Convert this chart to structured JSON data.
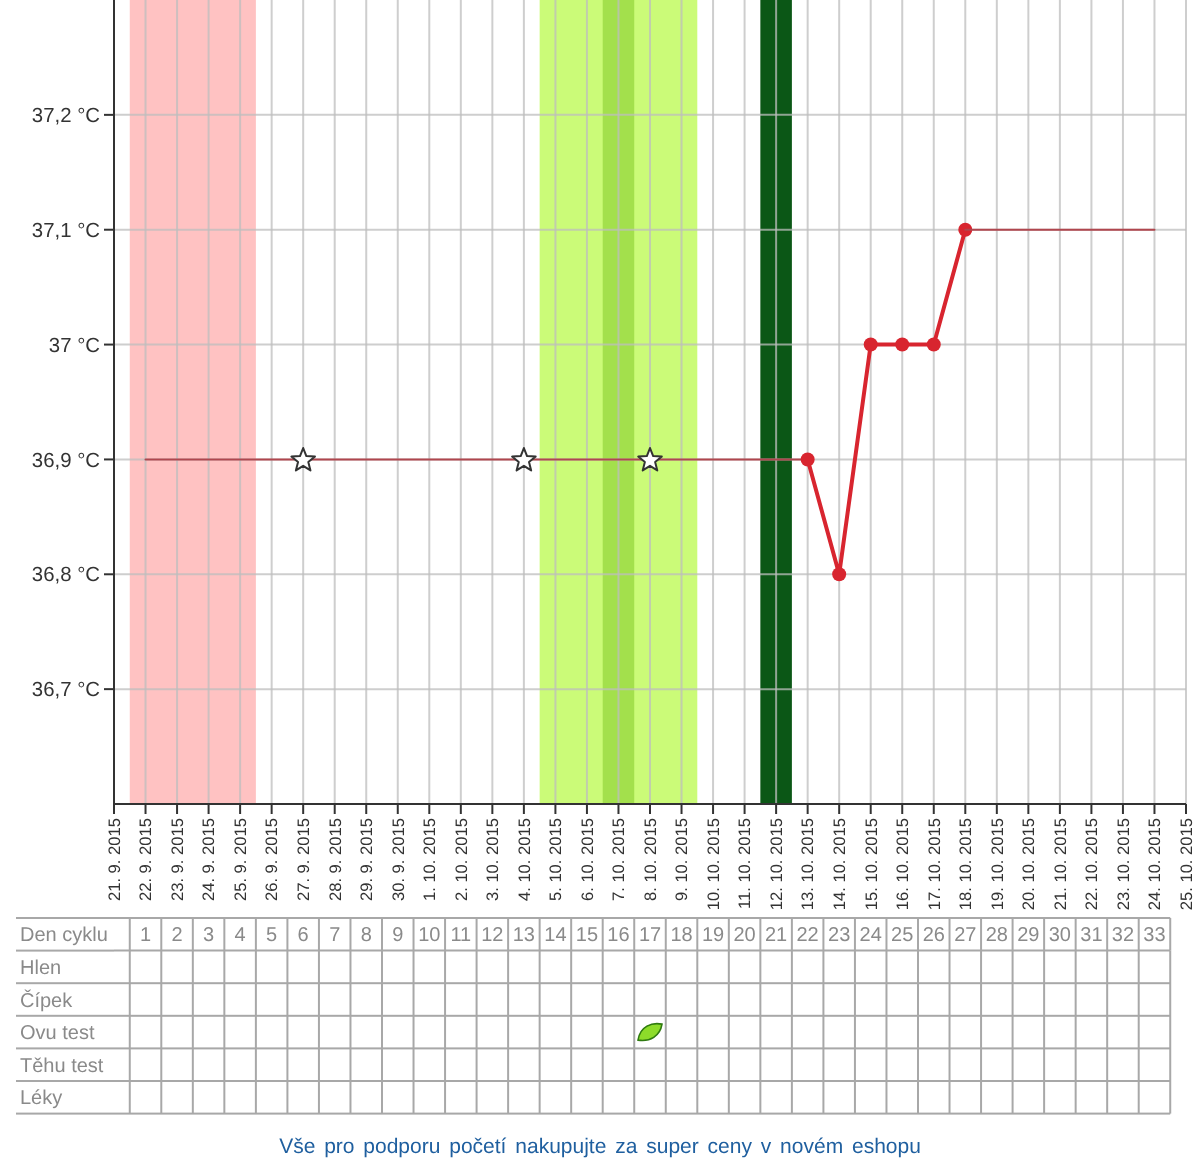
{
  "chart_data": [
    {
      "type": "line",
      "series": [
        {
          "x": [
            "2015-09-22",
            "2015-10-13"
          ],
          "values": [
            36.9,
            36.9
          ],
          "color": "#b0464e",
          "marker": "none"
        },
        {
          "x": [
            "2015-10-13",
            "2015-10-14",
            "2015-10-15",
            "2015-10-16",
            "2015-10-17",
            "2015-10-18"
          ],
          "values": [
            36.9,
            36.8,
            37.0,
            37.0,
            37.0,
            37.1
          ],
          "color": "#d8252f",
          "marker": "circle"
        },
        {
          "x": [
            "2015-10-18",
            "2015-10-24"
          ],
          "values": [
            37.1,
            37.1
          ],
          "color": "#b0464e",
          "marker": "none"
        },
        {
          "type": "scatter",
          "x": [
            "2015-09-27",
            "2015-10-04",
            "2015-10-08"
          ],
          "values": [
            36.9,
            36.9,
            36.9
          ],
          "color": "#ffffff",
          "marker": "star"
        }
      ],
      "xlim": [
        "2015-09-21",
        "2015-10-25"
      ],
      "xticks": [
        {
          "value": "2015-09-21",
          "label": "21. 9. 2015"
        },
        {
          "value": "2015-09-22",
          "label": "22. 9. 2015"
        },
        {
          "value": "2015-09-23",
          "label": "23. 9. 2015"
        },
        {
          "value": "2015-09-24",
          "label": "24. 9. 2015"
        },
        {
          "value": "2015-09-25",
          "label": "25. 9. 2015"
        },
        {
          "value": "2015-09-26",
          "label": "26. 9. 2015"
        },
        {
          "value": "2015-09-27",
          "label": "27. 9. 2015"
        },
        {
          "value": "2015-09-28",
          "label": "28. 9. 2015"
        },
        {
          "value": "2015-09-29",
          "label": "29. 9. 2015"
        },
        {
          "value": "2015-09-30",
          "label": "30. 9. 2015"
        },
        {
          "value": "2015-10-01",
          "label": "1. 10. 2015"
        },
        {
          "value": "2015-10-02",
          "label": "2. 10. 2015"
        },
        {
          "value": "2015-10-03",
          "label": "3. 10. 2015"
        },
        {
          "value": "2015-10-04",
          "label": "4. 10. 2015"
        },
        {
          "value": "2015-10-05",
          "label": "5. 10. 2015"
        },
        {
          "value": "2015-10-06",
          "label": "6. 10. 2015"
        },
        {
          "value": "2015-10-07",
          "label": "7. 10. 2015"
        },
        {
          "value": "2015-10-08",
          "label": "8. 10. 2015"
        },
        {
          "value": "2015-10-09",
          "label": "9. 10. 2015"
        },
        {
          "value": "2015-10-10",
          "label": "10. 10. 2015"
        },
        {
          "value": "2015-10-11",
          "label": "11. 10. 2015"
        },
        {
          "value": "2015-10-12",
          "label": "12. 10. 2015"
        },
        {
          "value": "2015-10-13",
          "label": "13. 10. 2015"
        },
        {
          "value": "2015-10-14",
          "label": "14. 10. 2015"
        },
        {
          "value": "2015-10-15",
          "label": "15. 10. 2015"
        },
        {
          "value": "2015-10-16",
          "label": "16. 10. 2015"
        },
        {
          "value": "2015-10-17",
          "label": "17. 10. 2015"
        },
        {
          "value": "2015-10-18",
          "label": "18. 10. 2015"
        },
        {
          "value": "2015-10-19",
          "label": "19. 10. 2015"
        },
        {
          "value": "2015-10-20",
          "label": "20. 10. 2015"
        },
        {
          "value": "2015-10-21",
          "label": "21. 10. 2015"
        },
        {
          "value": "2015-10-22",
          "label": "22. 10. 2015"
        },
        {
          "value": "2015-10-23",
          "label": "23. 10. 2015"
        },
        {
          "value": "2015-10-24",
          "label": "24. 10. 2015"
        },
        {
          "value": "2015-10-25",
          "label": "25. 10. 2015"
        }
      ],
      "x2lim": [
        0,
        34
      ],
      "x2ticks": [
        1,
        2,
        3,
        4,
        5,
        6,
        7,
        8,
        9,
        10,
        11,
        12,
        13,
        14,
        15,
        16,
        17,
        18,
        19,
        20,
        21,
        22,
        23,
        24,
        25,
        26,
        27,
        28,
        29,
        30,
        31,
        32,
        33
      ],
      "x2label": "Den cyklu",
      "ylim": [
        36.6,
        37.3
      ],
      "yticks": [
        {
          "value": 36.7,
          "label": "36,7 °C"
        },
        {
          "value": 36.8,
          "label": "36,8 °C"
        },
        {
          "value": 36.9,
          "label": "36,9 °C"
        },
        {
          "value": 37,
          "label": "37 °C"
        },
        {
          "value": 37.1,
          "label": "37,1 °C"
        },
        {
          "value": 37.2,
          "label": "37,2 °C"
        }
      ],
      "bands": [
        {
          "axis": "x",
          "from": "2015-09-21T12:00",
          "to": "2015-09-25T12:00",
          "color": "#ffc2c2"
        },
        {
          "axis": "x",
          "from": "2015-10-04T12:00",
          "to": "2015-10-09T12:00",
          "color": "#cbfb78"
        },
        {
          "axis": "x",
          "from": "2015-10-06T12:00",
          "to": "2015-10-07T12:00",
          "color": "#a3e04c"
        },
        {
          "axis": "x",
          "from": "2015-10-11T12:00",
          "to": "2015-10-12T12:00",
          "color": "#0b5716"
        }
      ],
      "grid": true,
      "line_style": "solid"
    },
    {
      "type": "other",
      "y_categories": [
        "Hlen",
        "Čípek",
        "Ovu test",
        "Těhu test",
        "Léky"
      ],
      "annotations": [
        "Vše pro podporu početí nakupujte za super ceny v novém eshopu"
      ]
    }
  ]
}
